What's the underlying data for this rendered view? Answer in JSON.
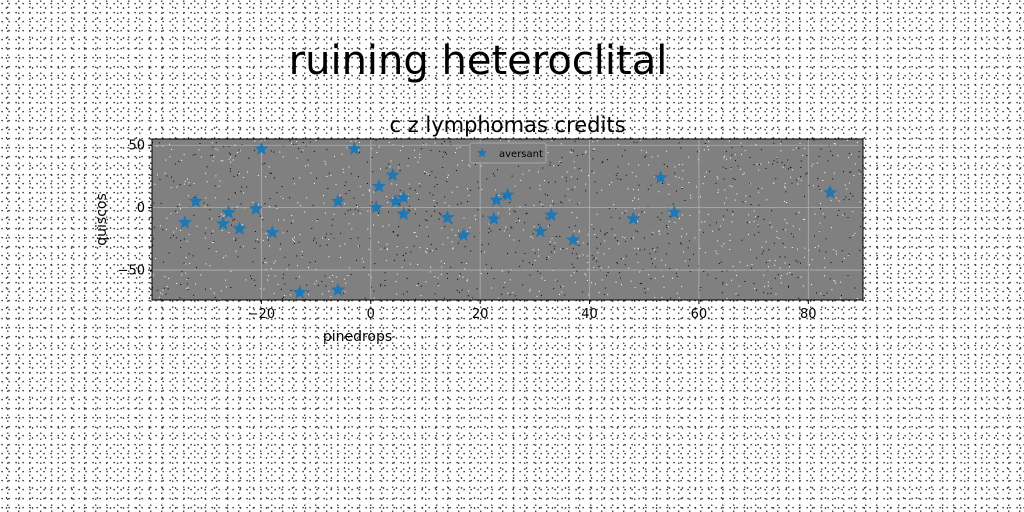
{
  "figure": {
    "suptitle": "ruining heteroclital"
  },
  "chart_data": {
    "type": "scatter",
    "title": "c z lymphomas credits",
    "xlabel": "pinedrops",
    "ylabel": "quiscos",
    "xlim": [
      -40,
      90
    ],
    "ylim": [
      -74,
      55
    ],
    "xticks": [
      -20,
      0,
      20,
      40,
      60,
      80
    ],
    "yticks": [
      -50,
      0,
      50
    ],
    "grid": true,
    "marker": "star",
    "legend": {
      "placement": "upper-center"
    },
    "colors": {
      "series": "#1f77b4",
      "axes_bg": "#808080",
      "grid": "#b0b0b0"
    },
    "series": [
      {
        "name": "aversant",
        "points": [
          {
            "x": -20,
            "y": 47
          },
          {
            "x": -3,
            "y": 47
          },
          {
            "x": -32,
            "y": 5
          },
          {
            "x": -34,
            "y": -12
          },
          {
            "x": -26,
            "y": -4
          },
          {
            "x": -27,
            "y": -13
          },
          {
            "x": -24,
            "y": -17
          },
          {
            "x": -21,
            "y": -1
          },
          {
            "x": -18,
            "y": -20
          },
          {
            "x": -13,
            "y": -68
          },
          {
            "x": -6,
            "y": -66
          },
          {
            "x": -6,
            "y": 5
          },
          {
            "x": 1,
            "y": 0
          },
          {
            "x": 1.5,
            "y": 17
          },
          {
            "x": 4,
            "y": 26
          },
          {
            "x": 4.5,
            "y": 5
          },
          {
            "x": 6,
            "y": 8
          },
          {
            "x": 6,
            "y": -5
          },
          {
            "x": 14,
            "y": -8
          },
          {
            "x": 17,
            "y": -22
          },
          {
            "x": 22.5,
            "y": -9
          },
          {
            "x": 23,
            "y": 6
          },
          {
            "x": 25,
            "y": 10
          },
          {
            "x": 31,
            "y": -19
          },
          {
            "x": 33,
            "y": -6
          },
          {
            "x": 37,
            "y": -26
          },
          {
            "x": 48,
            "y": -9
          },
          {
            "x": 53,
            "y": 24
          },
          {
            "x": 55.5,
            "y": -4
          },
          {
            "x": 84,
            "y": 12
          }
        ]
      }
    ]
  }
}
